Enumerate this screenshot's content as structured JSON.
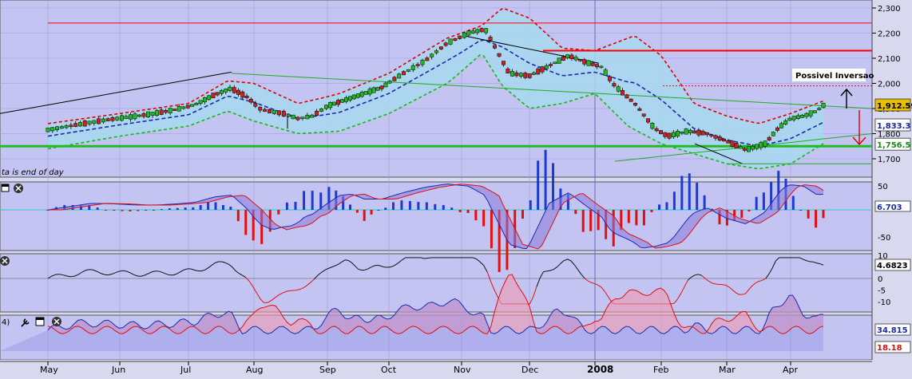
{
  "main_panel": {
    "annotation": "Possivel Inversao",
    "footer_note": "ta is end of day",
    "price_axis_ticks": [
      "2,300",
      "2,200",
      "2,100",
      "2,000",
      "1,900",
      "1,800",
      "1,700"
    ],
    "price_badges": [
      {
        "value": "1,912.59",
        "color": "#e8c000",
        "text_color": "#000000"
      },
      {
        "value": "1,833.3",
        "color": "#ffffff",
        "text_color": "#1a2aa0"
      },
      {
        "value": "1,756.5",
        "color": "#ffffff",
        "text_color": "#1a8a1a"
      }
    ]
  },
  "macd_panel": {
    "axis_ticks": [
      "50",
      "-50"
    ],
    "value_badge": "6.703",
    "signal_badge_hint": "",
    "close_icon": "close-icon",
    "window_icon": "window-icon"
  },
  "momentum_panel": {
    "axis_ticks": [
      "10",
      "5",
      "0",
      "-5",
      "-10"
    ],
    "value_badge": "4.6823",
    "close_icon": "close-icon"
  },
  "dmi_panel": {
    "label_prefix": "4)",
    "value_badges": [
      {
        "value": "34.815",
        "text_color": "#1a2aa0"
      },
      {
        "value": "18.18",
        "text_color": "#d01010"
      }
    ],
    "icons": [
      "wrench-icon",
      "window-icon",
      "close-icon"
    ]
  },
  "x_axis": {
    "labels": [
      "May",
      "Jun",
      "Jul",
      "Aug",
      "Sep",
      "Oct",
      "Nov",
      "Dec",
      "2008",
      "Feb",
      "Mar",
      "Apr"
    ]
  },
  "colors": {
    "panel_bg": "#c4c4f2",
    "candle_up": "#22bb22",
    "candle_down": "#cc2222",
    "upper_band": "#dd0000",
    "lower_band": "#11bb11",
    "mid_band": "#1a2ab0",
    "band_fill": "#a8d8f0",
    "resistance": "#ff0000",
    "support": "#22bb22"
  },
  "chart_data": {
    "type": "candlestick",
    "title": "",
    "xlabel": "",
    "ylabel": "",
    "ylim": [
      1650,
      2310
    ],
    "x_categories": [
      "May",
      "Jun",
      "Jul",
      "Aug",
      "Sep",
      "Oct",
      "Nov",
      "Dec",
      "2008",
      "Feb",
      "Mar",
      "Apr"
    ],
    "price_path": [
      [
        0,
        1815
      ],
      [
        0.3,
        1830
      ],
      [
        0.6,
        1845
      ],
      [
        0.9,
        1858
      ],
      [
        1.2,
        1868
      ],
      [
        1.5,
        1880
      ],
      [
        1.8,
        1895
      ],
      [
        2.1,
        1915
      ],
      [
        2.4,
        1955
      ],
      [
        2.65,
        1980
      ],
      [
        2.9,
        1945
      ],
      [
        3.1,
        1895
      ],
      [
        3.4,
        1880
      ],
      [
        3.6,
        1860
      ],
      [
        3.8,
        1870
      ],
      [
        4.0,
        1910
      ],
      [
        4.3,
        1935
      ],
      [
        4.6,
        1960
      ],
      [
        4.9,
        1985
      ],
      [
        5.2,
        2040
      ],
      [
        5.5,
        2090
      ],
      [
        5.8,
        2160
      ],
      [
        6.1,
        2200
      ],
      [
        6.35,
        2215
      ],
      [
        6.5,
        2140
      ],
      [
        6.7,
        2040
      ],
      [
        7.0,
        2030
      ],
      [
        7.3,
        2070
      ],
      [
        7.6,
        2110
      ],
      [
        7.85,
        2085
      ],
      [
        8.1,
        2065
      ],
      [
        8.3,
        1990
      ],
      [
        8.6,
        1920
      ],
      [
        8.9,
        1820
      ],
      [
        9.1,
        1790
      ],
      [
        9.4,
        1810
      ],
      [
        9.7,
        1800
      ],
      [
        10.0,
        1770
      ],
      [
        10.3,
        1735
      ],
      [
        10.6,
        1760
      ],
      [
        10.8,
        1820
      ],
      [
        11.0,
        1860
      ],
      [
        11.2,
        1870
      ],
      [
        11.4,
        1890
      ],
      [
        11.5,
        1912.59
      ]
    ],
    "upper_band": [
      [
        0,
        1840
      ],
      [
        1,
        1880
      ],
      [
        2,
        1920
      ],
      [
        2.6,
        2010
      ],
      [
        3,
        2000
      ],
      [
        3.6,
        1920
      ],
      [
        4.2,
        1960
      ],
      [
        5,
        2040
      ],
      [
        5.8,
        2180
      ],
      [
        6.3,
        2230
      ],
      [
        6.6,
        2300
      ],
      [
        7,
        2260
      ],
      [
        7.5,
        2140
      ],
      [
        8,
        2130
      ],
      [
        8.6,
        2190
      ],
      [
        9.0,
        2110
      ],
      [
        9.5,
        1920
      ],
      [
        10,
        1870
      ],
      [
        10.5,
        1840
      ],
      [
        11,
        1880
      ],
      [
        11.5,
        1930
      ]
    ],
    "lower_band": [
      [
        0,
        1740
      ],
      [
        1,
        1790
      ],
      [
        2,
        1830
      ],
      [
        2.6,
        1890
      ],
      [
        3,
        1850
      ],
      [
        3.6,
        1800
      ],
      [
        4.2,
        1810
      ],
      [
        5,
        1880
      ],
      [
        5.8,
        2000
      ],
      [
        6.3,
        2120
      ],
      [
        6.6,
        1990
      ],
      [
        7.0,
        1900
      ],
      [
        7.5,
        1920
      ],
      [
        8,
        1960
      ],
      [
        8.5,
        1830
      ],
      [
        9.0,
        1760
      ],
      [
        9.5,
        1720
      ],
      [
        10,
        1680
      ],
      [
        10.5,
        1660
      ],
      [
        11,
        1680
      ],
      [
        11.5,
        1760
      ]
    ],
    "resistance_lines": [
      2240,
      2130
    ],
    "support_line": 1750,
    "dotted_level": 1990,
    "last_close": 1912.59,
    "mid_band_value": 1833.3,
    "support_value": 1756.5
  }
}
